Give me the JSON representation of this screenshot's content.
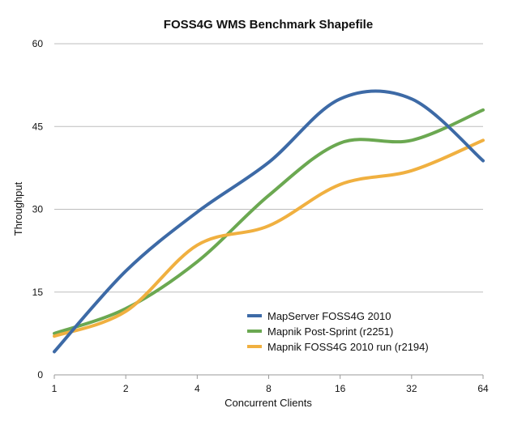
{
  "chart_data": {
    "type": "line",
    "title": "FOSS4G WMS Benchmark Shapefile",
    "xlabel": "Concurrent Clients",
    "ylabel": "Throughput",
    "x": [
      1,
      2,
      4,
      8,
      16,
      32,
      64
    ],
    "x_scale": "log2",
    "x_tick_labels": [
      "1",
      "2",
      "4",
      "8",
      "16",
      "32",
      "64"
    ],
    "ylim": [
      0,
      60
    ],
    "y_ticks": [
      0,
      15,
      30,
      45,
      60
    ],
    "y_tick_labels": [
      "0",
      "15",
      "30",
      "45",
      "60"
    ],
    "grid": "horizontal",
    "legend_position": "bottom-right",
    "series": [
      {
        "name": "MapServer FOSS4G 2010",
        "color": "#3d6aa6",
        "values": [
          4.2,
          18.8,
          29.5,
          38.5,
          50.0,
          50.0,
          38.8
        ]
      },
      {
        "name": "Mapnik Post-Sprint (r2251)",
        "color": "#6ba851",
        "values": [
          7.5,
          12.0,
          20.5,
          32.5,
          42.0,
          42.5,
          48.0
        ]
      },
      {
        "name": "Mapnik FOSS4G 2010 run (r2194)",
        "color": "#f0b040",
        "values": [
          7.0,
          11.5,
          23.5,
          27.0,
          34.5,
          37.0,
          42.5
        ]
      }
    ]
  }
}
